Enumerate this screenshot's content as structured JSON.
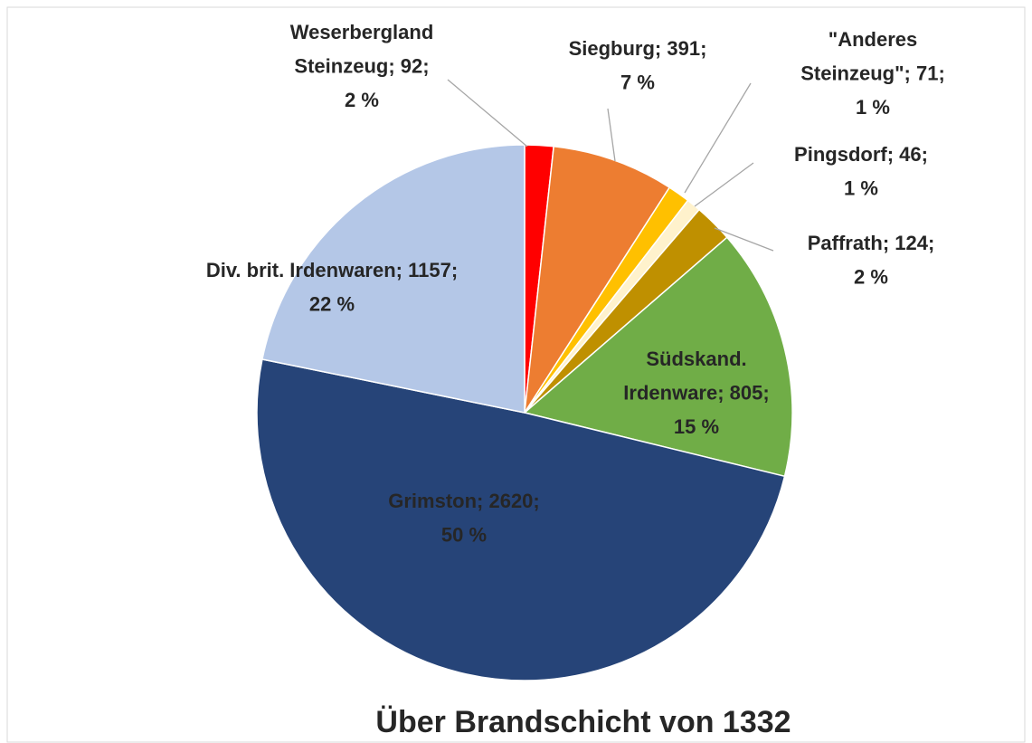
{
  "chart_data": {
    "type": "pie",
    "title": "Über Brandschicht von 1332",
    "values": [
      92,
      391,
      71,
      46,
      124,
      805,
      2620,
      1157
    ],
    "value_labels": [
      [
        "Weserbergland",
        "Steinzeug; 92;",
        "2 %"
      ],
      [
        "Siegburg; 391;",
        "7 %"
      ],
      [
        "\"Anderes",
        "Steinzeug\"; 71;",
        "1 %"
      ],
      [
        "Pingsdorf; 46;",
        "1 %"
      ],
      [
        "Paffrath; 124;",
        "2 %"
      ],
      [
        "Südskand.",
        "Irdenware; 805;",
        "15 %"
      ],
      [
        "Grimston; 2620;",
        "50 %"
      ],
      [
        "Div. brit. Irdenwaren; 1157;",
        "22 %"
      ]
    ],
    "colors": [
      "#ff0000",
      "#ed7d31",
      "#ffc000",
      "#fff2cc",
      "#bf9000",
      "#70ad47",
      "#264478",
      "#b4c7e7"
    ]
  }
}
